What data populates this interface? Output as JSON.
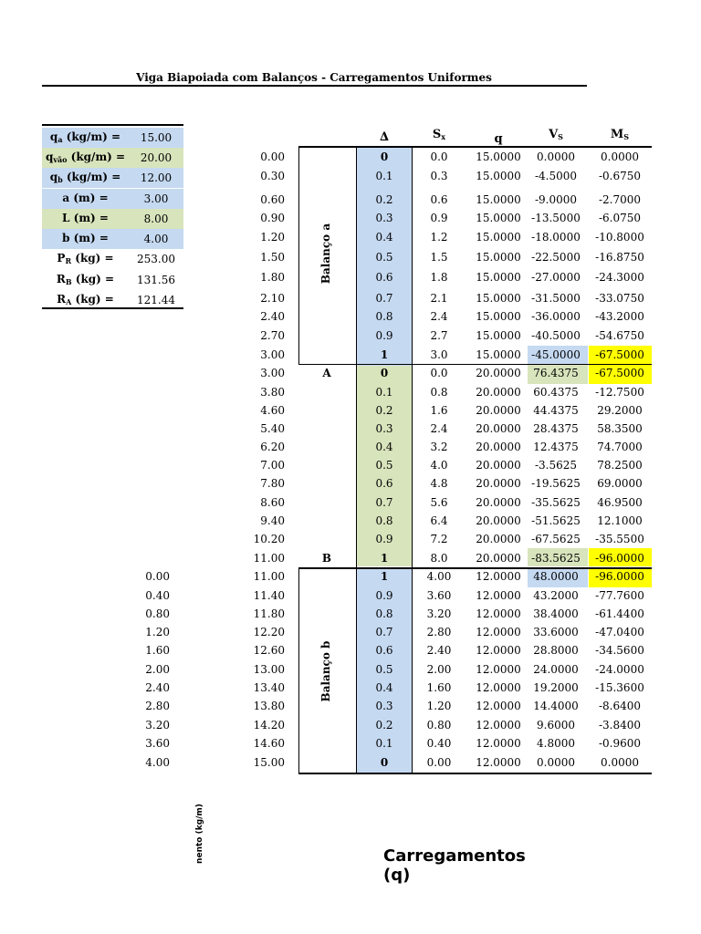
{
  "title": "Viga Biapoiada com Balanços - Carregamentos Uniformes",
  "params": [
    {
      "sym": "q",
      "sub": "a",
      "unit": " (kg/m) =",
      "value": "15.00",
      "color": "blue"
    },
    {
      "sym": "q",
      "sub": "vão",
      "unit": " (kg/m) =",
      "value": "20.00",
      "color": "green"
    },
    {
      "sym": "q",
      "sub": "b",
      "unit": " (kg/m) =",
      "value": "12.00",
      "color": "blue"
    },
    {
      "sym": "a",
      "sub": "",
      "unit": " (m) =",
      "value": "3.00",
      "color": "blue"
    },
    {
      "sym": "L",
      "sub": "",
      "unit": " (m) =",
      "value": "8.00",
      "color": "green"
    },
    {
      "sym": "b",
      "sub": "",
      "unit": " (m) =",
      "value": "4.00",
      "color": "blue"
    },
    {
      "sym": "P",
      "sub": "R",
      "unit": " (kg) =",
      "value": "253.00",
      "color": "none"
    },
    {
      "sym": "R",
      "sub": "B",
      "unit": " (kg) =",
      "value": "131.56",
      "color": "none"
    },
    {
      "sym": "R",
      "sub": "A",
      "unit": " (kg) =",
      "value": "121.44",
      "color": "none"
    }
  ],
  "headers": {
    "delta": "∆",
    "sx_sym": "S",
    "sx_sub": "x",
    "q": "q",
    "vs_sym": "V",
    "vs_sub": "S",
    "ms_sym": "M",
    "ms_sub": "S"
  },
  "section_labels": {
    "balanco_a": "Balanço a",
    "balanco_b": "Balanço b",
    "support_a": "A",
    "support_b": "B"
  },
  "rows_a": [
    {
      "x": "0.00",
      "d": "0",
      "s": "0.0",
      "q": "15.0000",
      "v": "0.0000",
      "m": "0.0000"
    },
    {
      "x": "0.30",
      "d": "0.1",
      "s": "0.3",
      "q": "15.0000",
      "v": "-4.5000",
      "m": "-0.6750"
    },
    {
      "x": "0.60",
      "d": "0.2",
      "s": "0.6",
      "q": "15.0000",
      "v": "-9.0000",
      "m": "-2.7000"
    },
    {
      "x": "0.90",
      "d": "0.3",
      "s": "0.9",
      "q": "15.0000",
      "v": "-13.5000",
      "m": "-6.0750"
    },
    {
      "x": "1.20",
      "d": "0.4",
      "s": "1.2",
      "q": "15.0000",
      "v": "-18.0000",
      "m": "-10.8000"
    },
    {
      "x": "1.50",
      "d": "0.5",
      "s": "1.5",
      "q": "15.0000",
      "v": "-22.5000",
      "m": "-16.8750"
    },
    {
      "x": "1.80",
      "d": "0.6",
      "s": "1.8",
      "q": "15.0000",
      "v": "-27.0000",
      "m": "-24.3000"
    },
    {
      "x": "2.10",
      "d": "0.7",
      "s": "2.1",
      "q": "15.0000",
      "v": "-31.5000",
      "m": "-33.0750"
    },
    {
      "x": "2.40",
      "d": "0.8",
      "s": "2.4",
      "q": "15.0000",
      "v": "-36.0000",
      "m": "-43.2000"
    },
    {
      "x": "2.70",
      "d": "0.9",
      "s": "2.7",
      "q": "15.0000",
      "v": "-40.5000",
      "m": "-54.6750"
    },
    {
      "x": "3.00",
      "d": "1",
      "s": "3.0",
      "q": "15.0000",
      "v": "-45.0000",
      "m": "-67.5000"
    }
  ],
  "rows_l": [
    {
      "x": "3.00",
      "d": "0",
      "s": "0.0",
      "q": "20.0000",
      "v": "76.4375",
      "m": "-67.5000"
    },
    {
      "x": "3.80",
      "d": "0.1",
      "s": "0.8",
      "q": "20.0000",
      "v": "60.4375",
      "m": "-12.7500"
    },
    {
      "x": "4.60",
      "d": "0.2",
      "s": "1.6",
      "q": "20.0000",
      "v": "44.4375",
      "m": "29.2000"
    },
    {
      "x": "5.40",
      "d": "0.3",
      "s": "2.4",
      "q": "20.0000",
      "v": "28.4375",
      "m": "58.3500"
    },
    {
      "x": "6.20",
      "d": "0.4",
      "s": "3.2",
      "q": "20.0000",
      "v": "12.4375",
      "m": "74.7000"
    },
    {
      "x": "7.00",
      "d": "0.5",
      "s": "4.0",
      "q": "20.0000",
      "v": "-3.5625",
      "m": "78.2500"
    },
    {
      "x": "7.80",
      "d": "0.6",
      "s": "4.8",
      "q": "20.0000",
      "v": "-19.5625",
      "m": "69.0000"
    },
    {
      "x": "8.60",
      "d": "0.7",
      "s": "5.6",
      "q": "20.0000",
      "v": "-35.5625",
      "m": "46.9500"
    },
    {
      "x": "9.40",
      "d": "0.8",
      "s": "6.4",
      "q": "20.0000",
      "v": "-51.5625",
      "m": "12.1000"
    },
    {
      "x": "10.20",
      "d": "0.9",
      "s": "7.2",
      "q": "20.0000",
      "v": "-67.5625",
      "m": "-35.5500"
    },
    {
      "x": "11.00",
      "d": "1",
      "s": "8.0",
      "q": "20.0000",
      "v": "-83.5625",
      "m": "-96.0000"
    }
  ],
  "rows_b": [
    {
      "l": "0.00",
      "x": "11.00",
      "d": "1",
      "s": "4.00",
      "q": "12.0000",
      "v": "48.0000",
      "m": "-96.0000"
    },
    {
      "l": "0.40",
      "x": "11.40",
      "d": "0.9",
      "s": "3.60",
      "q": "12.0000",
      "v": "43.2000",
      "m": "-77.7600"
    },
    {
      "l": "0.80",
      "x": "11.80",
      "d": "0.8",
      "s": "3.20",
      "q": "12.0000",
      "v": "38.4000",
      "m": "-61.4400"
    },
    {
      "l": "1.20",
      "x": "12.20",
      "d": "0.7",
      "s": "2.80",
      "q": "12.0000",
      "v": "33.6000",
      "m": "-47.0400"
    },
    {
      "l": "1.60",
      "x": "12.60",
      "d": "0.6",
      "s": "2.40",
      "q": "12.0000",
      "v": "28.8000",
      "m": "-34.5600"
    },
    {
      "l": "2.00",
      "x": "13.00",
      "d": "0.5",
      "s": "2.00",
      "q": "12.0000",
      "v": "24.0000",
      "m": "-24.0000"
    },
    {
      "l": "2.40",
      "x": "13.40",
      "d": "0.4",
      "s": "1.60",
      "q": "12.0000",
      "v": "19.2000",
      "m": "-15.3600"
    },
    {
      "l": "2.80",
      "x": "13.80",
      "d": "0.3",
      "s": "1.20",
      "q": "12.0000",
      "v": "14.4000",
      "m": "-8.6400"
    },
    {
      "l": "3.20",
      "x": "14.20",
      "d": "0.2",
      "s": "0.80",
      "q": "12.0000",
      "v": "9.6000",
      "m": "-3.8400"
    },
    {
      "l": "3.60",
      "x": "14.60",
      "d": "0.1",
      "s": "0.40",
      "q": "12.0000",
      "v": "4.8000",
      "m": "-0.9600"
    },
    {
      "l": "4.00",
      "x": "15.00",
      "d": "0",
      "s": "0.00",
      "q": "12.0000",
      "v": "0.0000",
      "m": "0.0000"
    }
  ],
  "colors": {
    "blue": "#c5d9f1",
    "green": "#d8e4bc",
    "yellow": "#ffff00",
    "lightgreen": "#d8e4bc",
    "lightblue": "#c5d9f1"
  },
  "footer": {
    "chart_title": "Carregamentos (q)",
    "axis_fragment": "nento (kg/m)"
  }
}
